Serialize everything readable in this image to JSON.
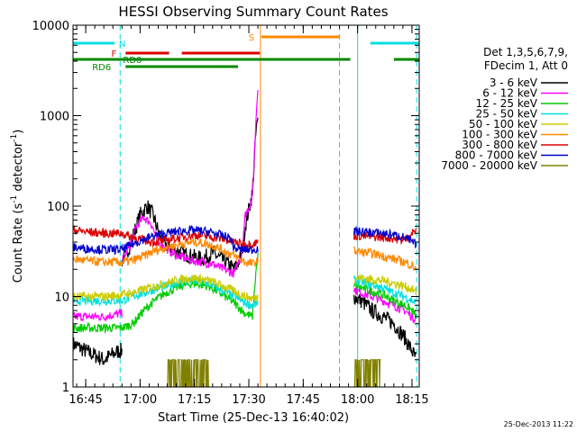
{
  "chart_data": {
    "type": "line",
    "title": "HESSI Observing Summary Count Rates",
    "xlabel": "Start Time (25-Dec-13 16:40:02)",
    "ylabel_main": "Count Rate (s",
    "ylabel_sup1": "-1",
    "ylabel_mid": " detector",
    "ylabel_sup2": "-1",
    "ylabel_end": ")",
    "yscale": "log",
    "ylim": [
      1,
      10000
    ],
    "xlim_min": [
      41.5,
      137
    ],
    "y_ticks": [
      {
        "value": 1,
        "label": "1"
      },
      {
        "value": 10,
        "label": "10"
      },
      {
        "value": 100,
        "label": "100"
      },
      {
        "value": 1000,
        "label": "1000"
      },
      {
        "value": 10000,
        "label": "10000"
      }
    ],
    "x_ticks": [
      {
        "t": 45,
        "label": "16:45"
      },
      {
        "t": 60,
        "label": "17:00"
      },
      {
        "t": 75,
        "label": "17:15"
      },
      {
        "t": 90,
        "label": "17:30"
      },
      {
        "t": 105,
        "label": "17:45"
      },
      {
        "t": 120,
        "label": "18:00"
      },
      {
        "t": 135,
        "label": "18:15"
      }
    ],
    "legend_header": [
      "Det 1,3,5,6,7,9,",
      "FDecim 1, Att 0"
    ],
    "series": [
      {
        "name": "3 - 6 keV",
        "color": "#000000",
        "segments": [
          [
            [
              41.5,
              3
            ],
            [
              45,
              2.5
            ],
            [
              50,
              2
            ],
            [
              54,
              2.5
            ],
            [
              55,
              2.5
            ]
          ],
          [
            [
              55,
              25
            ],
            [
              57,
              35
            ],
            [
              60,
              80
            ],
            [
              62,
              100
            ],
            [
              63.5,
              80
            ],
            [
              66,
              40
            ],
            [
              70,
              32
            ],
            [
              74,
              28
            ],
            [
              77,
              26
            ],
            [
              80,
              30
            ],
            [
              83,
              25
            ],
            [
              86,
              20
            ],
            [
              88,
              28
            ],
            [
              89,
              60
            ],
            [
              91,
              140
            ],
            [
              92,
              700
            ],
            [
              92.6,
              900
            ]
          ],
          [
            [
              119,
              10
            ],
            [
              121,
              9
            ],
            [
              124,
              7
            ],
            [
              127,
              6
            ],
            [
              130,
              5
            ],
            [
              133,
              3.5
            ],
            [
              135,
              2.5
            ],
            [
              136.2,
              2
            ]
          ]
        ]
      },
      {
        "name": "6 - 12 keV",
        "color": "#ff00ff",
        "segments": [
          [
            [
              41.5,
              6
            ],
            [
              45,
              6
            ],
            [
              50,
              6
            ],
            [
              55,
              6.5
            ]
          ],
          [
            [
              55,
              25
            ],
            [
              57,
              35
            ],
            [
              59,
              60
            ],
            [
              61,
              75
            ],
            [
              63,
              65
            ],
            [
              65,
              40
            ],
            [
              69,
              30
            ],
            [
              74,
              25
            ],
            [
              77,
              24
            ],
            [
              80,
              23
            ],
            [
              83,
              20
            ],
            [
              86,
              18
            ],
            [
              88,
              30
            ],
            [
              89,
              80
            ],
            [
              91,
              120
            ],
            [
              92,
              1000
            ],
            [
              92.6,
              2500
            ]
          ],
          [
            [
              119,
              12
            ],
            [
              121,
              11
            ],
            [
              124,
              10
            ],
            [
              127,
              9
            ],
            [
              130,
              8
            ],
            [
              133,
              7
            ],
            [
              135,
              6
            ],
            [
              136.2,
              5.5
            ]
          ]
        ]
      },
      {
        "name": "12 - 25 keV",
        "color": "#00cc00",
        "segments": [
          [
            [
              41.5,
              4.5
            ],
            [
              45,
              4.5
            ],
            [
              50,
              4.5
            ],
            [
              55,
              4.5
            ],
            [
              58,
              5
            ],
            [
              61,
              7
            ],
            [
              64,
              9
            ],
            [
              67,
              11
            ],
            [
              71,
              13
            ],
            [
              75,
              14
            ],
            [
              79,
              13
            ],
            [
              82,
              11
            ],
            [
              86,
              8.5
            ],
            [
              89,
              6.5
            ],
            [
              91,
              6
            ],
            [
              92,
              20
            ],
            [
              92.6,
              30
            ]
          ],
          [
            [
              119,
              13
            ],
            [
              121,
              12.5
            ],
            [
              124,
              11.5
            ],
            [
              127,
              10.5
            ],
            [
              130,
              9
            ],
            [
              133,
              8
            ],
            [
              135,
              7
            ],
            [
              136.2,
              6
            ]
          ]
        ]
      },
      {
        "name": "25 - 50 keV",
        "color": "#00e0e0",
        "segments": [
          [
            [
              41.5,
              9
            ],
            [
              45,
              9
            ],
            [
              50,
              9
            ],
            [
              55,
              9
            ],
            [
              58,
              10
            ],
            [
              61,
              11
            ],
            [
              64,
              12
            ],
            [
              67,
              13
            ],
            [
              71,
              14.5
            ],
            [
              75,
              15
            ],
            [
              79,
              14
            ],
            [
              82,
              12
            ],
            [
              86,
              10
            ],
            [
              89,
              8.5
            ],
            [
              91,
              8
            ],
            [
              92.6,
              8.5
            ]
          ],
          [
            [
              119,
              15
            ],
            [
              121,
              14.5
            ],
            [
              124,
              13.5
            ],
            [
              127,
              12.5
            ],
            [
              130,
              11
            ],
            [
              133,
              10
            ],
            [
              135,
              9
            ],
            [
              136.2,
              8.5
            ]
          ]
        ]
      },
      {
        "name": "50 - 100 keV",
        "color": "#cccc00",
        "segments": [
          [
            [
              41.5,
              10
            ],
            [
              45,
              10
            ],
            [
              50,
              10
            ],
            [
              55,
              10.5
            ],
            [
              58,
              11
            ],
            [
              61,
              12
            ],
            [
              64,
              13
            ],
            [
              67,
              14
            ],
            [
              71,
              15.5
            ],
            [
              75,
              16
            ],
            [
              79,
              15
            ],
            [
              82,
              13.5
            ],
            [
              86,
              11.5
            ],
            [
              89,
              10
            ],
            [
              91,
              9.5
            ],
            [
              92.6,
              10
            ]
          ],
          [
            [
              119,
              16
            ],
            [
              121,
              16
            ],
            [
              124,
              15.5
            ],
            [
              127,
              15
            ],
            [
              130,
              14
            ],
            [
              133,
              13
            ],
            [
              135,
              12
            ],
            [
              136.2,
              11
            ]
          ]
        ]
      },
      {
        "name": "100 - 300 keV",
        "color": "#ff8800",
        "segments": [
          [
            [
              41.5,
              26
            ],
            [
              45,
              25
            ],
            [
              50,
              24
            ],
            [
              55,
              24
            ],
            [
              58,
              25
            ],
            [
              61,
              28
            ],
            [
              64,
              32
            ],
            [
              67,
              35
            ],
            [
              71,
              38
            ],
            [
              75,
              40
            ],
            [
              79,
              38
            ],
            [
              82,
              34
            ],
            [
              86,
              28
            ],
            [
              89,
              24
            ],
            [
              91,
              23
            ],
            [
              92.6,
              25
            ]
          ],
          [
            [
              119,
              32
            ],
            [
              121,
              31
            ],
            [
              124,
              30
            ],
            [
              127,
              28
            ],
            [
              130,
              26
            ],
            [
              133,
              24
            ],
            [
              135,
              22
            ],
            [
              136.2,
              20
            ]
          ]
        ]
      },
      {
        "name": "300 - 800 keV",
        "color": "#dd0000",
        "segments": [
          [
            [
              41.5,
              55
            ],
            [
              45,
              52
            ],
            [
              50,
              50
            ],
            [
              55,
              50
            ],
            [
              58,
              45
            ],
            [
              61,
              42
            ],
            [
              64,
              40
            ],
            [
              67,
              42
            ],
            [
              71,
              45
            ],
            [
              75,
              48
            ],
            [
              79,
              46
            ],
            [
              82,
              44
            ],
            [
              86,
              40
            ],
            [
              89,
              38
            ],
            [
              91,
              38
            ],
            [
              92.6,
              40
            ]
          ],
          [
            [
              119,
              47
            ],
            [
              121,
              47
            ],
            [
              124,
              46
            ],
            [
              127,
              45
            ],
            [
              130,
              44
            ],
            [
              133,
              42
            ],
            [
              134.5,
              48
            ],
            [
              136.2,
              55
            ]
          ]
        ]
      },
      {
        "name": "800 - 7000 keV",
        "color": "#0000cc",
        "segments": [
          [
            [
              41.5,
              35
            ],
            [
              45,
              34
            ],
            [
              50,
              33
            ],
            [
              55,
              33
            ],
            [
              58,
              38
            ],
            [
              61,
              43
            ],
            [
              64,
              47
            ],
            [
              67,
              50
            ],
            [
              71,
              53
            ],
            [
              75,
              54
            ],
            [
              79,
              52
            ],
            [
              82,
              48
            ],
            [
              85,
              44
            ],
            [
              86,
              34
            ],
            [
              89,
              33
            ],
            [
              91,
              33
            ],
            [
              92.6,
              34
            ]
          ],
          [
            [
              119,
              52
            ],
            [
              121,
              52
            ],
            [
              124,
              51
            ],
            [
              127,
              50
            ],
            [
              130,
              48
            ],
            [
              133,
              45
            ],
            [
              135,
              40
            ],
            [
              136.2,
              37
            ]
          ]
        ]
      },
      {
        "name": "7000 - 20000 keV",
        "color": "#808000",
        "segments": [
          [
            [
              67,
              1.5
            ],
            [
              70,
              1.6
            ],
            [
              73,
              1.6
            ],
            [
              76,
              1.5
            ],
            [
              79,
              1.5
            ]
          ],
          [
            [
              118.5,
              1.5
            ],
            [
              121,
              1.6
            ],
            [
              124,
              1.5
            ],
            [
              126.5,
              1.5
            ]
          ]
        ]
      }
    ],
    "bars": [
      {
        "label": "N",
        "color": "#00e0e0",
        "row": 0,
        "label_at": 56,
        "segments": [
          [
            41.5,
            53
          ],
          [
            123.5,
            137
          ]
        ]
      },
      {
        "label": "F",
        "color": "#dd0000",
        "row": 1,
        "label_at": 53.5,
        "segments": [
          [
            56,
            68
          ],
          [
            71.5,
            93
          ]
        ]
      },
      {
        "label": "S",
        "color": "#ff8800",
        "row": 2,
        "label_at": 91.5,
        "segments": [
          [
            93.5,
            115
          ]
        ]
      },
      {
        "label": "RD0",
        "color": "#008800",
        "row": 3,
        "label_at": 60.5,
        "segments": [
          [
            41.5,
            118
          ],
          [
            130,
            137
          ]
        ]
      },
      {
        "label": "RD6",
        "color": "#008800",
        "row": 4,
        "label_at": 52,
        "segments": [
          [
            56,
            87
          ]
        ]
      }
    ],
    "vlines": [
      {
        "t": 54.5,
        "color": "#00e0e0",
        "style": "dashed"
      },
      {
        "t": 93.2,
        "color": "#ff8800",
        "style": "solid"
      },
      {
        "t": 115,
        "color": "#ff8800",
        "style": "dashed"
      },
      {
        "t": 120,
        "color": "#00e0e0",
        "style": "solid"
      },
      {
        "t": 136.3,
        "color": "#00e0e0",
        "style": "dashed"
      }
    ],
    "timestamp": "25-Dec-2013 11:22",
    "grid": false,
    "legend_placement": "right"
  }
}
